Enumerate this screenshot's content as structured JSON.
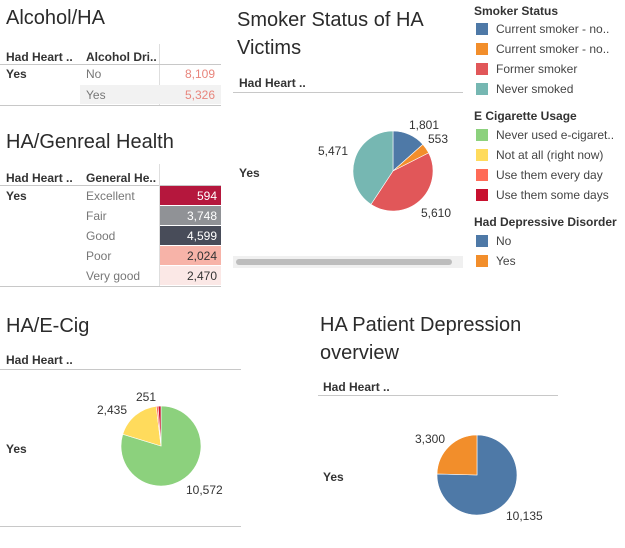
{
  "alcohol": {
    "title": "Alcohol/HA",
    "col1": "Had Heart ..",
    "col2": "Alcohol Dri..",
    "row_label": "Yes",
    "rows": [
      {
        "cat": "No",
        "val": "8,109"
      },
      {
        "cat": "Yes",
        "val": "5,326"
      }
    ]
  },
  "health": {
    "title": "HA/Genreal Health",
    "col1": "Had Heart ..",
    "col2": "General He..",
    "row_label": "Yes",
    "rows": [
      {
        "cat": "Excellent",
        "val": "594",
        "color": "#b5173d"
      },
      {
        "cat": "Fair",
        "val": "3,748",
        "color": "#909296"
      },
      {
        "cat": "Good",
        "val": "4,599",
        "color": "#484c59"
      },
      {
        "cat": "Poor",
        "val": "2,024",
        "color": "#f7b3a8"
      },
      {
        "cat": "Very good",
        "val": "2,470",
        "color": "#fbe8e6"
      }
    ]
  },
  "smoker": {
    "title_line1": "Smoker Status of HA",
    "title_line2": "Victims",
    "col1": "Had Heart ..",
    "row_label": "Yes",
    "labels": {
      "a": "1,801",
      "b": "553",
      "c": "5,610",
      "d": "5,471"
    }
  },
  "ecig": {
    "title": "HA/E-Cig",
    "col1": "Had Heart ..",
    "row_label": "Yes",
    "labels": {
      "a": "251",
      "b": "2,435",
      "c": "10,572"
    }
  },
  "depression": {
    "title_line1": "HA Patient Depression",
    "title_line2": "overview",
    "col1": "Had Heart ..",
    "row_label": "Yes",
    "labels": {
      "a": "3,300",
      "b": "10,135"
    }
  },
  "legend": {
    "smoker_title": "Smoker Status",
    "smoker_items": [
      {
        "label": "Current smoker - no..",
        "color": "#4e79a7"
      },
      {
        "label": "Current smoker - no..",
        "color": "#f28e2b"
      },
      {
        "label": "Former smoker",
        "color": "#e15759"
      },
      {
        "label": "Never smoked",
        "color": "#76b7b2"
      }
    ],
    "ecig_title": "E Cigarette Usage",
    "ecig_items": [
      {
        "label": "Never used e-cigaret..",
        "color": "#8cd17d"
      },
      {
        "label": "Not at all (right now)",
        "color": "#ffdb5c"
      },
      {
        "label": "Use them every day",
        "color": "#ff6b57"
      },
      {
        "label": "Use them some days",
        "color": "#c8102e"
      }
    ],
    "dep_title": "Had Depressive Disorder",
    "dep_items": [
      {
        "label": "No",
        "color": "#4e79a7"
      },
      {
        "label": "Yes",
        "color": "#f28e2b"
      }
    ]
  },
  "chart_data": [
    {
      "type": "pie",
      "name_key": "smoker",
      "categories": [
        "Current smoker - no..",
        "Current smoker - no..",
        "Former smoker",
        "Never smoked"
      ],
      "values": [
        1801,
        553,
        5610,
        5471
      ],
      "colors": [
        "#4e79a7",
        "#f28e2b",
        "#e15759",
        "#76b7b2"
      ]
    },
    {
      "type": "pie",
      "name_key": "ecig",
      "categories": [
        "Never used e-cigaret..",
        "Not at all (right now)",
        "Use them every day",
        "Use them some days"
      ],
      "values": [
        10572,
        2435,
        100,
        151
      ],
      "colors": [
        "#8cd17d",
        "#ffdb5c",
        "#ff6b57",
        "#c8102e"
      ]
    },
    {
      "type": "pie",
      "name_key": "depression",
      "categories": [
        "No",
        "Yes"
      ],
      "values": [
        10135,
        3300
      ],
      "colors": [
        "#4e79a7",
        "#f28e2b"
      ]
    }
  ]
}
